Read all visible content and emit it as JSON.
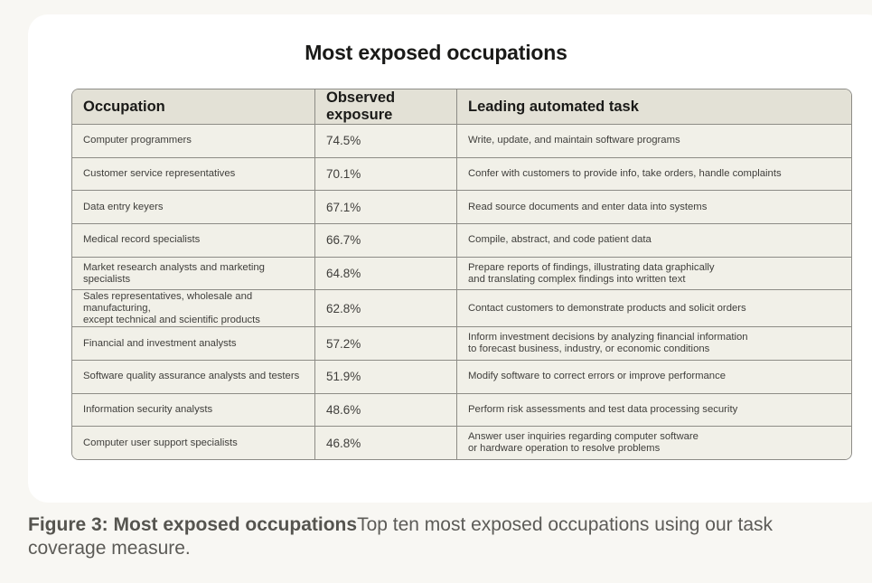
{
  "figure": {
    "title": "Most exposed occupations",
    "caption_bold": "Figure 3: Most exposed occupations",
    "caption_text": "Top ten most exposed occupations using our task coverage measure."
  },
  "table": {
    "headers": [
      "Occupation",
      "Observed exposure",
      "Leading automated task"
    ],
    "rows": [
      {
        "occupation": "Computer programmers",
        "exposure": "74.5%",
        "task": "Write, update, and maintain software programs"
      },
      {
        "occupation": "Customer service representatives",
        "exposure": "70.1%",
        "task": "Confer with customers to provide info, take orders, handle complaints"
      },
      {
        "occupation": "Data entry keyers",
        "exposure": "67.1%",
        "task": "Read source documents and enter data into systems"
      },
      {
        "occupation": "Medical record specialists",
        "exposure": "66.7%",
        "task": "Compile, abstract, and code patient data"
      },
      {
        "occupation": "Market research analysts and marketing specialists",
        "exposure": "64.8%",
        "task": "Prepare reports of findings, illustrating data graphically\nand translating complex findings into written text"
      },
      {
        "occupation": "Sales representatives, wholesale and manufacturing,\nexcept technical and scientific products",
        "exposure": "62.8%",
        "task": "Contact customers to demonstrate products and solicit orders"
      },
      {
        "occupation": "Financial and investment analysts",
        "exposure": "57.2%",
        "task": "Inform investment decisions by analyzing financial information\nto forecast business, industry, or economic conditions"
      },
      {
        "occupation": "Software quality assurance analysts and testers",
        "exposure": "51.9%",
        "task": "Modify software to correct errors or improve performance"
      },
      {
        "occupation": "Information security analysts",
        "exposure": "48.6%",
        "task": "Perform risk assessments and test data processing security"
      },
      {
        "occupation": "Computer user support specialists",
        "exposure": "46.8%",
        "task": "Answer user inquiries regarding computer software\nor hardware operation to resolve problems"
      }
    ]
  }
}
